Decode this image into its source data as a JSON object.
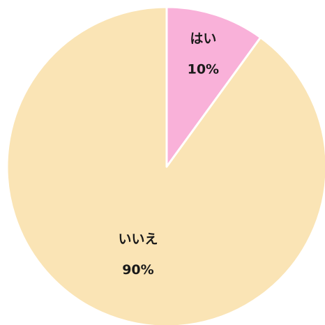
{
  "chart_data": {
    "type": "pie",
    "categories": [
      "はい",
      "いいえ"
    ],
    "values": [
      10,
      90
    ],
    "value_labels": [
      "10%",
      "90%"
    ],
    "colors": [
      "#f9b1d9",
      "#fae4b5"
    ]
  }
}
